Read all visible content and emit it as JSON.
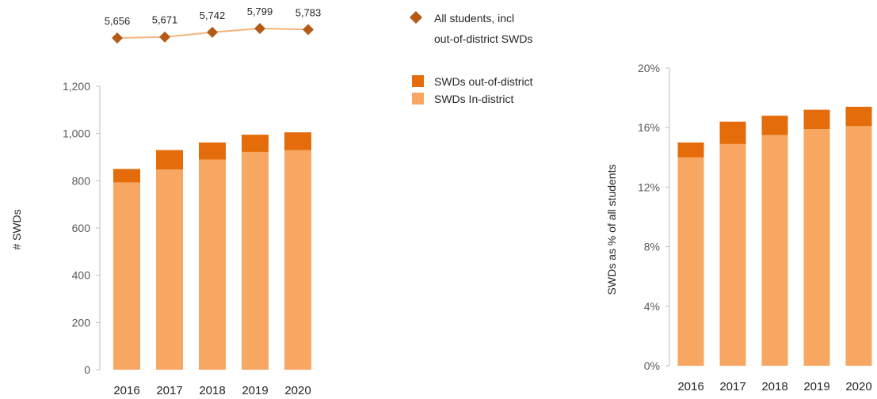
{
  "colors": {
    "in_district": "#F7A762",
    "out_of_district": "#E46C0A",
    "total_line": "#F5B37A",
    "total_marker": "#B45A12",
    "axis": "#bfbfbf"
  },
  "chart_data": [
    {
      "type": "line",
      "categories": [
        "2016",
        "2017",
        "2018",
        "2019",
        "2020"
      ],
      "series": [
        {
          "name": "All students, incl out-of-district SWDs",
          "values": [
            5656,
            5671,
            5742,
            5799,
            5783
          ]
        }
      ],
      "data_labels": [
        "5,656",
        "5,671",
        "5,742",
        "5,799",
        "5,783"
      ],
      "marker": "diamond"
    },
    {
      "type": "bar",
      "stacked": true,
      "categories": [
        "2016",
        "2017",
        "2018",
        "2019",
        "2020"
      ],
      "series": [
        {
          "name": "SWDs In-district",
          "values": [
            793,
            848,
            890,
            922,
            930
          ]
        },
        {
          "name": "SWDs out-of-district",
          "values": [
            57,
            82,
            72,
            73,
            75
          ]
        }
      ],
      "ylabel": "# SWDs",
      "ylim": [
        0,
        1200
      ],
      "yticks": [
        0,
        200,
        400,
        600,
        800,
        1000,
        1200
      ],
      "ytick_labels": [
        "0",
        "200",
        "400",
        "600",
        "800",
        "1,000",
        "1,200"
      ]
    },
    {
      "type": "bar",
      "stacked": true,
      "categories": [
        "2016",
        "2017",
        "2018",
        "2019",
        "2020"
      ],
      "series": [
        {
          "name": "SWDs In-district",
          "values": [
            14.0,
            14.9,
            15.5,
            15.9,
            16.1
          ]
        },
        {
          "name": "SWDs out-of-district",
          "values": [
            1.0,
            1.5,
            1.3,
            1.3,
            1.3
          ]
        }
      ],
      "ylabel": "SWDs as % of all students",
      "ylim": [
        0,
        20
      ],
      "yticks": [
        0,
        4,
        8,
        12,
        16,
        20
      ],
      "ytick_labels": [
        "0%",
        "4%",
        "8%",
        "12%",
        "16%",
        "20%"
      ]
    }
  ],
  "legend": {
    "total": "All students, incl out-of-district SWDs",
    "total_line1": "All students, incl",
    "total_line2": "out-of-district SWDs",
    "out_of_district": "SWDs out-of-district",
    "in_district": "SWDs In-district"
  }
}
